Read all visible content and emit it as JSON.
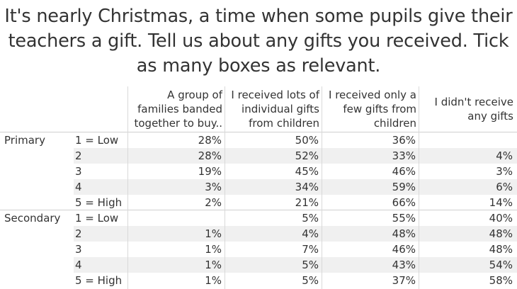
{
  "title": "It's nearly Christmas, a time when some pupils give their teachers a gift. Tell us about any gifts you received. Tick as many boxes as relevant.",
  "chart_data": {
    "type": "table",
    "title": "It's nearly Christmas, a time when some pupils give their teachers a gift. Tell us about any gifts you received. Tick as many boxes as relevant.",
    "columns": [
      "A group of families banded together to buy..",
      "I received lots of individual gifts from children",
      "I received only a few gifts from children",
      "I didn't receive any gifts"
    ],
    "groups": [
      {
        "name": "Primary",
        "rows": [
          {
            "label": "1 = Low",
            "values": [
              "28%",
              "50%",
              "36%",
              ""
            ]
          },
          {
            "label": "2",
            "values": [
              "28%",
              "52%",
              "33%",
              "4%"
            ]
          },
          {
            "label": "3",
            "values": [
              "19%",
              "45%",
              "46%",
              "3%"
            ]
          },
          {
            "label": "4",
            "values": [
              "3%",
              "34%",
              "59%",
              "6%"
            ]
          },
          {
            "label": "5 = High",
            "values": [
              "2%",
              "21%",
              "66%",
              "14%"
            ]
          }
        ]
      },
      {
        "name": "Secondary",
        "rows": [
          {
            "label": "1 = Low",
            "values": [
              "",
              "5%",
              "55%",
              "40%"
            ]
          },
          {
            "label": "2",
            "values": [
              "1%",
              "4%",
              "48%",
              "48%"
            ]
          },
          {
            "label": "3",
            "values": [
              "1%",
              "7%",
              "46%",
              "48%"
            ]
          },
          {
            "label": "4",
            "values": [
              "1%",
              "5%",
              "43%",
              "54%"
            ]
          },
          {
            "label": "5 = High",
            "values": [
              "1%",
              "5%",
              "37%",
              "58%"
            ]
          }
        ]
      }
    ]
  }
}
